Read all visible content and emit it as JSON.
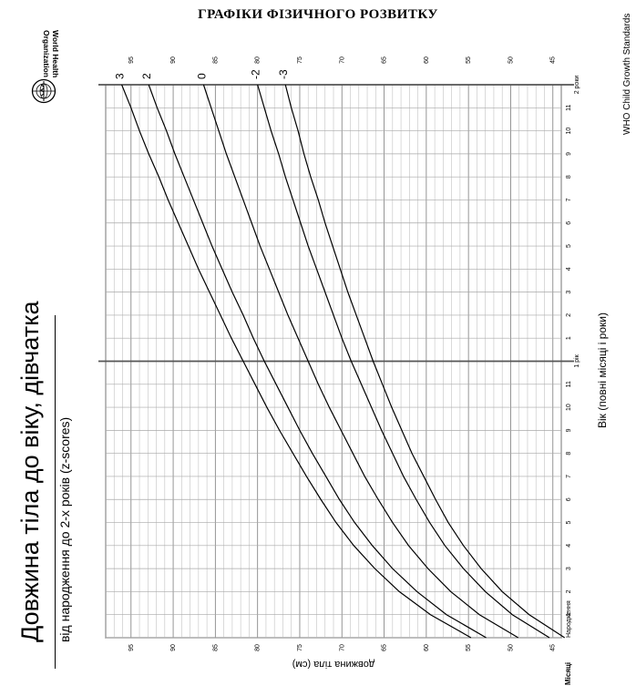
{
  "header": {
    "title": "ГРАФІКИ ФІЗИЧНОГО РОЗВИТКУ",
    "org_name_lines": [
      "World Health",
      "Organization"
    ],
    "standards_label": "WHO Child Growth Standards"
  },
  "chart_data": {
    "type": "line",
    "title": "Довжина тіла до віку, дівчатка",
    "subtitle": "від народження до 2-х років (z-scores)",
    "xlabel": "Вік (повні місяці і роки)",
    "ylabel": "довжина тіла (см)",
    "xlim": [
      0,
      24
    ],
    "ylim": [
      44,
      98
    ],
    "grid": true,
    "x_tick_labels": [
      "Народження",
      "1",
      "2",
      "3",
      "4",
      "5",
      "6",
      "7",
      "8",
      "9",
      "10",
      "11",
      "1 рік",
      "1",
      "2",
      "3",
      "4",
      "5",
      "6",
      "7",
      "8",
      "9",
      "10",
      "11",
      "2 роки"
    ],
    "y_tick_labels": [
      "45",
      "50",
      "55",
      "60",
      "65",
      "70",
      "75",
      "80",
      "85",
      "90",
      "95"
    ],
    "y_tick_values": [
      45,
      50,
      55,
      60,
      65,
      70,
      75,
      80,
      85,
      90,
      95
    ],
    "corner_label": "Місяці",
    "x": [
      0,
      1,
      2,
      3,
      4,
      5,
      6,
      7,
      8,
      9,
      10,
      11,
      12,
      13,
      14,
      15,
      16,
      17,
      18,
      19,
      20,
      21,
      22,
      23,
      24
    ],
    "series": [
      {
        "name": "3",
        "values": [
          54.7,
          59.5,
          63.2,
          66.1,
          68.6,
          70.7,
          72.5,
          74.2,
          75.8,
          77.4,
          78.9,
          80.3,
          81.7,
          83.1,
          84.4,
          85.7,
          87.0,
          88.2,
          89.4,
          90.6,
          91.7,
          92.9,
          94.0,
          95.0,
          96.1
        ]
      },
      {
        "name": "2",
        "values": [
          52.9,
          57.6,
          61.1,
          64.0,
          66.4,
          68.5,
          70.3,
          71.9,
          73.5,
          75.0,
          76.4,
          77.8,
          79.2,
          80.5,
          81.7,
          83.0,
          84.2,
          85.4,
          86.5,
          87.6,
          88.7,
          89.8,
          90.8,
          91.9,
          92.9
        ]
      },
      {
        "name": "0",
        "values": [
          49.1,
          53.7,
          57.1,
          59.8,
          62.1,
          64.0,
          65.7,
          67.3,
          68.7,
          70.1,
          71.5,
          72.8,
          74.0,
          75.2,
          76.4,
          77.5,
          78.6,
          79.7,
          80.7,
          81.7,
          82.7,
          83.7,
          84.6,
          85.5,
          86.4
        ]
      },
      {
        "name": "-2",
        "values": [
          45.4,
          49.8,
          53.0,
          55.6,
          57.8,
          59.6,
          61.2,
          62.7,
          64.0,
          65.3,
          66.5,
          67.7,
          68.9,
          70.0,
          71.0,
          72.0,
          73.0,
          74.0,
          74.9,
          75.8,
          76.7,
          77.5,
          78.4,
          79.2,
          80.0
        ]
      },
      {
        "name": "-3",
        "values": [
          43.6,
          47.8,
          51.0,
          53.5,
          55.6,
          57.4,
          58.9,
          60.3,
          61.7,
          62.9,
          64.1,
          65.2,
          66.3,
          67.3,
          68.3,
          69.3,
          70.2,
          71.1,
          72.0,
          72.8,
          73.7,
          74.5,
          75.2,
          76.0,
          76.7
        ]
      }
    ]
  }
}
